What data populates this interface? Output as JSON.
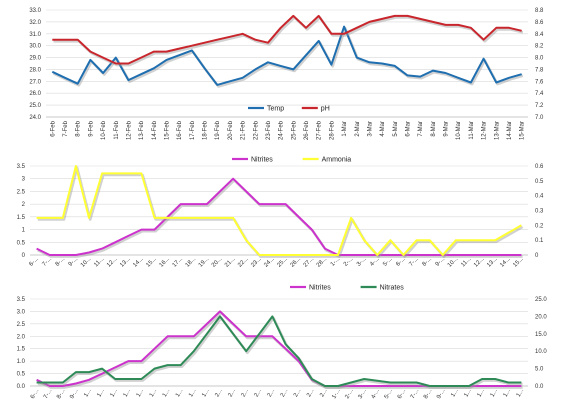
{
  "chart_data": [
    {
      "type": "line",
      "x": [
        "6-Feb",
        "7-Feb",
        "8-Feb",
        "9-Feb",
        "10-Feb",
        "11-Feb",
        "12-Feb",
        "13-Feb",
        "14-Feb",
        "15-Feb",
        "16-Feb",
        "17-Feb",
        "18-Feb",
        "19-Feb",
        "20-Feb",
        "21-Feb",
        "22-Feb",
        "23-Feb",
        "24-Feb",
        "25-Feb",
        "26-Feb",
        "27-Feb",
        "28-Feb",
        "1-Mar",
        "2-Mar",
        "3-Mar",
        "4-Mar",
        "5-Mar",
        "6-Mar",
        "7-Mar",
        "8-Mar",
        "9-Mar",
        "10-Mar",
        "11-Mar",
        "12-Mar",
        "13-Mar",
        "14-Mar",
        "15-Mar"
      ],
      "x_tick_labels": [
        "6-Feb",
        "7-Feb",
        "8-Feb",
        "9-Feb",
        "10-Feb",
        "11-Feb",
        "12-Feb",
        "13-Feb",
        "14-Feb",
        "15-Feb",
        "16-Feb",
        "17-Feb",
        "18-Feb",
        "19-Feb",
        "20-Feb",
        "21-Feb",
        "22-Feb",
        "23-Feb",
        "24-Feb",
        "25-Feb",
        "26-Feb",
        "27-Feb",
        "28-Feb",
        "1-Mar",
        "2-Mar",
        "3-Mar",
        "4-Mar",
        "5-Mar",
        "6-Mar",
        "7-Mar",
        "8-Mar",
        "9-Mar",
        "10-Mar",
        "11-Mar",
        "12-Mar",
        "13-Mar",
        "14-Mar",
        "15-Mar"
      ],
      "series": [
        {
          "name": "Temp",
          "axis": "left",
          "color": "#1f6fb0",
          "values": [
            27.8,
            27.3,
            26.8,
            28.8,
            27.7,
            29.0,
            27.1,
            27.6,
            28.1,
            28.8,
            29.2,
            29.6,
            28.1,
            26.7,
            27.0,
            27.3,
            28.0,
            28.6,
            28.3,
            28.0,
            29.2,
            30.4,
            28.4,
            31.6,
            29.0,
            28.6,
            28.5,
            28.3,
            27.5,
            27.4,
            27.9,
            27.7,
            27.3,
            26.9,
            28.9,
            26.9,
            27.3,
            27.6
          ]
        },
        {
          "name": "pH",
          "axis": "right",
          "color": "#c8262c",
          "values": [
            8.3,
            8.3,
            8.3,
            8.1,
            8.0,
            7.9,
            7.9,
            8.0,
            8.1,
            8.1,
            8.15,
            8.2,
            8.25,
            8.3,
            8.35,
            8.4,
            8.3,
            8.25,
            8.5,
            8.7,
            8.5,
            8.7,
            8.4,
            8.4,
            8.5,
            8.6,
            8.65,
            8.7,
            8.7,
            8.65,
            8.6,
            8.55,
            8.55,
            8.5,
            8.3,
            8.5,
            8.5,
            8.45
          ]
        }
      ],
      "y_left": {
        "ticks": [
          24.0,
          25.0,
          26.0,
          27.0,
          28.0,
          29.0,
          30.0,
          31.0,
          32.0,
          33.0
        ],
        "ylim": [
          24,
          33
        ]
      },
      "y_right": {
        "ticks": [
          7.0,
          7.2,
          7.4,
          7.6,
          7.8,
          8.0,
          8.2,
          8.4,
          8.6,
          8.8
        ],
        "ylim": [
          7.0,
          8.8
        ]
      },
      "legend": "bottom"
    },
    {
      "type": "line",
      "x": [
        "6",
        "7",
        "8",
        "9",
        "10",
        "11",
        "12",
        "13",
        "14",
        "15",
        "16",
        "17",
        "18",
        "19",
        "20",
        "21",
        "22",
        "23",
        "24",
        "25",
        "26",
        "27",
        "28",
        "1",
        "2",
        "3",
        "4",
        "5",
        "6",
        "7",
        "8",
        "9",
        "10",
        "11",
        "12",
        "13",
        "14",
        "15"
      ],
      "x_tick_labels": [
        "6-...",
        "7-...",
        "8-...",
        "9-...",
        "10...",
        "11...",
        "12...",
        "13...",
        "14...",
        "15...",
        "16...",
        "17...",
        "18...",
        "19...",
        "20...",
        "21...",
        "22...",
        "23...",
        "24...",
        "25...",
        "26...",
        "27...",
        "28...",
        "1-...",
        "2-...",
        "3-...",
        "4-...",
        "5-...",
        "6-...",
        "7-...",
        "8-...",
        "9-...",
        "10...",
        "11...",
        "12...",
        "13...",
        "14...",
        "15..."
      ],
      "series": [
        {
          "name": "Nitrites",
          "axis": "left",
          "color": "#cc33cc",
          "values": [
            0.25,
            0,
            0,
            0,
            0.1,
            0.25,
            0.5,
            0.75,
            1,
            1,
            1.5,
            2,
            2,
            2,
            2.5,
            3,
            2.5,
            2,
            2,
            2,
            1.5,
            1,
            0.25,
            0,
            0,
            0,
            0,
            0,
            0,
            0,
            0,
            0,
            0,
            0,
            0,
            0,
            0,
            0
          ]
        },
        {
          "name": "Ammonia",
          "axis": "right",
          "color": "#ffff33",
          "values": [
            0.25,
            0.25,
            0.25,
            0.6,
            0.25,
            0.55,
            0.55,
            0.55,
            0.55,
            0.25,
            0.25,
            0.25,
            0.25,
            0.25,
            0.25,
            0.25,
            0.1,
            0,
            0,
            0,
            0,
            0,
            0,
            0,
            0.25,
            0.1,
            0,
            0.1,
            0,
            0.1,
            0.1,
            0,
            0.1,
            0.1,
            0.1,
            0.1,
            0.15,
            0.2
          ]
        }
      ],
      "y_left": {
        "ticks": [
          "0",
          "0.5",
          "1",
          "1.5",
          "2",
          "2.5",
          "3",
          "3.5"
        ],
        "ylim": [
          0,
          3.5
        ]
      },
      "y_right": {
        "ticks": [
          "0",
          "0.1",
          "0.2",
          "0.3",
          "0.4",
          "0.5",
          "0.6"
        ],
        "ylim": [
          0,
          0.6
        ]
      },
      "legend": "top"
    },
    {
      "type": "line",
      "x": [
        "6",
        "7",
        "8",
        "9",
        "10",
        "11",
        "12",
        "13",
        "14",
        "15",
        "16",
        "17",
        "18",
        "19",
        "20",
        "21",
        "22",
        "23",
        "24",
        "25",
        "26",
        "27",
        "28",
        "1",
        "2",
        "3",
        "4",
        "5",
        "6",
        "7",
        "8",
        "9",
        "10",
        "11",
        "12",
        "13",
        "14",
        "15"
      ],
      "x_tick_labels": [
        "6-...",
        "7-...",
        "8-...",
        "9-...",
        "1...",
        "1...",
        "1...",
        "1...",
        "1...",
        "1...",
        "1...",
        "1...",
        "1...",
        "1...",
        "2...",
        "2...",
        "2...",
        "2...",
        "2...",
        "2...",
        "2...",
        "2...",
        "2...",
        "1-...",
        "2-...",
        "3-...",
        "4-...",
        "5-...",
        "6-...",
        "7-...",
        "8-...",
        "9-...",
        "1...",
        "1...",
        "1...",
        "1...",
        "1...",
        "1..."
      ],
      "series": [
        {
          "name": "Nitrites",
          "axis": "left",
          "color": "#cc33cc",
          "values": [
            0.25,
            0,
            0,
            0.1,
            0.25,
            0.5,
            0.75,
            1,
            1,
            1.5,
            2,
            2,
            2,
            2.5,
            3,
            2.5,
            2,
            2,
            2,
            1.5,
            1,
            0.25,
            0,
            0,
            0,
            0,
            0,
            0,
            0,
            0,
            0,
            0,
            0,
            0,
            0,
            0,
            0,
            0
          ]
        },
        {
          "name": "Nitrates",
          "axis": "right",
          "color": "#2e8b57",
          "values": [
            1,
            1,
            1,
            4,
            4,
            5,
            2,
            2,
            2,
            5,
            6,
            6,
            10,
            15,
            20,
            15,
            10,
            15,
            20,
            12,
            8,
            2,
            0,
            0,
            1,
            2,
            1.5,
            1,
            1,
            1,
            0,
            0,
            0,
            0,
            2,
            2,
            1,
            1
          ]
        }
      ],
      "y_left": {
        "ticks": [
          "0.0",
          "0.5",
          "1.0",
          "1.5",
          "2.0",
          "2.5",
          "3.0",
          "3.5"
        ],
        "ylim": [
          0,
          3.5
        ]
      },
      "y_right": {
        "ticks": [
          "0.0",
          "5.0",
          "10.0",
          "15.0",
          "20.0",
          "25.0"
        ],
        "ylim": [
          0,
          25
        ]
      },
      "legend": "top"
    }
  ]
}
